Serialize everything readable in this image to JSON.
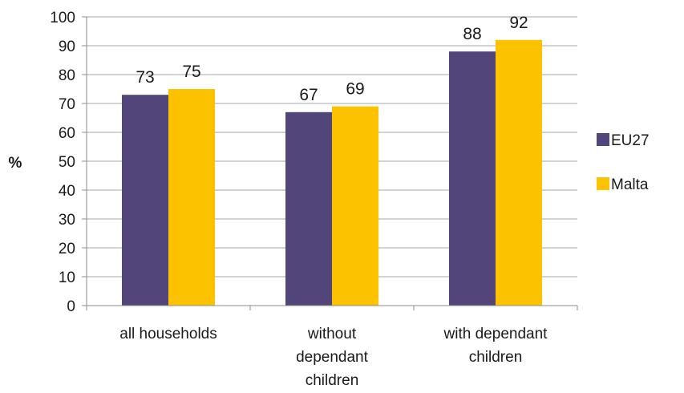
{
  "chart_data": {
    "type": "bar",
    "categories": [
      [
        "all households"
      ],
      [
        "without",
        "dependant",
        "children"
      ],
      [
        "with dependant",
        "children"
      ]
    ],
    "series": [
      {
        "name": "EU27",
        "values": [
          73,
          67,
          88
        ],
        "color": "#52457a"
      },
      {
        "name": "Malta",
        "values": [
          75,
          69,
          92
        ],
        "color": "#fcc200"
      }
    ],
    "ylabel": "%",
    "ylim": [
      0,
      100
    ],
    "yticks": [
      0,
      10,
      20,
      30,
      40,
      50,
      60,
      70,
      80,
      90,
      100
    ],
    "grid": true,
    "legend_position": "right",
    "data_labels": true
  }
}
